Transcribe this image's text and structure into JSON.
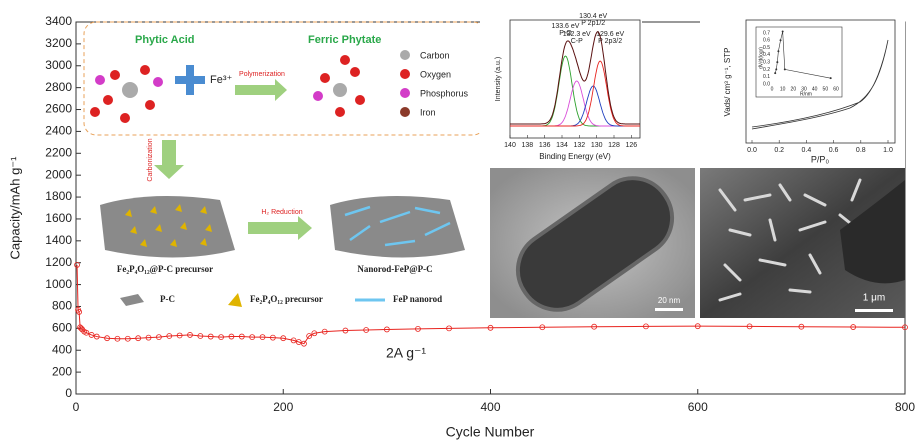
{
  "chart_data": {
    "type": "line",
    "x_label": "Cycle Number",
    "y_label": "Capacity/mAh g⁻¹",
    "annotation": "2A g⁻¹",
    "x": [
      1,
      2,
      3,
      4,
      5,
      6,
      8,
      10,
      15,
      20,
      30,
      40,
      50,
      60,
      70,
      80,
      90,
      100,
      110,
      120,
      130,
      140,
      150,
      160,
      170,
      180,
      190,
      200,
      210,
      215,
      220,
      225,
      230,
      240,
      260,
      280,
      300,
      330,
      360,
      400,
      450,
      500,
      550,
      600,
      650,
      700,
      750,
      800
    ],
    "values": [
      1180,
      770,
      750,
      610,
      600,
      590,
      570,
      560,
      540,
      525,
      510,
      505,
      505,
      510,
      515,
      520,
      530,
      535,
      540,
      530,
      525,
      520,
      525,
      525,
      520,
      520,
      515,
      510,
      490,
      475,
      460,
      530,
      555,
      570,
      580,
      585,
      590,
      595,
      600,
      605,
      610,
      615,
      618,
      620,
      618,
      615,
      612,
      610
    ],
    "color": "#e8241f",
    "xlim": [
      0,
      800
    ],
    "xticks": [
      0,
      200,
      400,
      600,
      800
    ],
    "ylim": [
      0,
      3400
    ],
    "yticks": [
      0,
      200,
      400,
      600,
      800,
      1000,
      1200,
      1400,
      1600,
      1800,
      2000,
      2200,
      2400,
      2600,
      2800,
      3000,
      3200,
      3400
    ]
  },
  "schematic": {
    "phytic_acid": "Phytic Acid",
    "ferric_phytate": "Ferric Phytate",
    "fe": "Fe³⁺",
    "polymerization": "Polymerization",
    "legend": [
      "Carbon",
      "Oxygen",
      "Phosphorus",
      "Iron"
    ],
    "carbonization": "Carbonization",
    "h2_reduction": "H₂ Reduction",
    "precursor": "Fe₂P₄O₁₂@P-C precursor",
    "nanorod": "Nanorod-FeP@P-C",
    "key": [
      "P-C",
      "Fe₂P₄O₁₂ precursor",
      "FeP nanorod"
    ]
  },
  "xps": {
    "x_label": "Binding Energy (eV)",
    "y_label": "Intensity (a.u.)",
    "xlim": [
      140,
      125
    ],
    "xticks": [
      140,
      138,
      136,
      134,
      132,
      130,
      128,
      126
    ],
    "peaks": [
      133.6,
      132.3,
      130.4,
      129.6
    ],
    "peak_labels": [
      "133.6 eV",
      "132.3 eV",
      "130.4 eV",
      "129.6 eV"
    ],
    "peak_names": [
      "P-O",
      "C-P",
      "P 2p1/2",
      "P 2p3/2"
    ]
  },
  "bet": {
    "x_label": "P/P₀",
    "y_label": "Vads/ cm³ g⁻¹, STP",
    "xlim": [
      0,
      1
    ],
    "xticks": [
      {
        "value": 0,
        "label": "0.0"
      },
      0.2,
      0.4,
      0.6,
      0.8,
      {
        "value": 1,
        "label": "1.0"
      }
    ],
    "inset": {
      "x_label": "R/nm",
      "y_label": "dV/d(logr)",
      "xlim": [
        0,
        60
      ],
      "xticks": [
        0,
        10,
        20,
        30,
        40,
        50,
        60
      ],
      "ylim": [
        0,
        0.7
      ],
      "yticks": [
        {
          "value": 0,
          "label": "0.0"
        },
        0.1,
        0.2,
        0.3,
        0.4,
        0.5,
        0.6,
        0.7
      ],
      "x": [
        3,
        4,
        5,
        6,
        8,
        10,
        12,
        55
      ],
      "values": [
        0.15,
        0.2,
        0.3,
        0.45,
        0.6,
        0.72,
        0.2,
        0.08
      ]
    }
  },
  "tem": {
    "scale_bar": "20 nm"
  },
  "sem": {
    "scale_bar": "1 μm"
  }
}
